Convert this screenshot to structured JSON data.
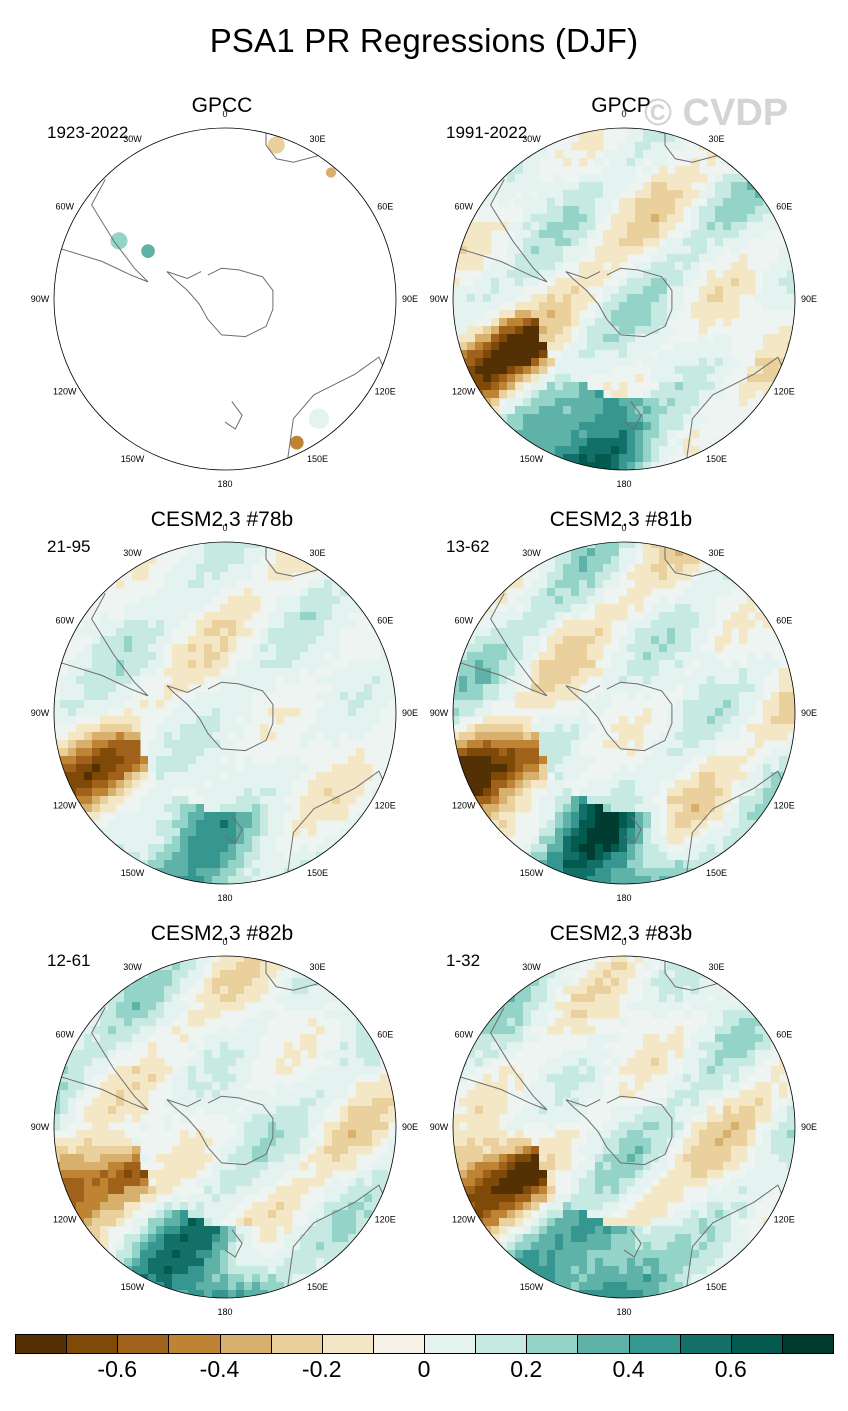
{
  "title": "PSA1 PR Regressions (DJF)",
  "watermark": "© CVDP",
  "lon_labels": [
    "0",
    "30E",
    "60E",
    "90E",
    "120E",
    "150E",
    "180",
    "150W",
    "120W",
    "90W",
    "60W",
    "30W"
  ],
  "panels": [
    {
      "title": "GPCC",
      "period": "1923-2022",
      "coverage": "land-only",
      "amplitude": 0.25
    },
    {
      "title": "GPCP",
      "period": "1991-2022",
      "coverage": "full",
      "amplitude": 0.75
    },
    {
      "title": "CESM2.3 #78b",
      "period": "21-95",
      "coverage": "full",
      "amplitude": 0.55
    },
    {
      "title": "CESM2.3 #81b",
      "period": "13-62",
      "coverage": "full",
      "amplitude": 0.75
    },
    {
      "title": "CESM2.3 #82b",
      "period": "12-61",
      "coverage": "full",
      "amplitude": 0.7
    },
    {
      "title": "CESM2.3 #83b",
      "period": "1-32",
      "coverage": "full",
      "amplitude": 0.75
    }
  ],
  "colorbar": {
    "colors": [
      "#543005",
      "#7f4908",
      "#a0621a",
      "#bf8433",
      "#d8b06d",
      "#e9d09c",
      "#f4e7c5",
      "#f5f1e6",
      "#e4f2f0",
      "#c6e9e2",
      "#93d3c8",
      "#5fb2a8",
      "#35978f",
      "#137068",
      "#035a4e",
      "#003c30"
    ],
    "boundaries": [
      -0.7,
      -0.6,
      -0.5,
      -0.4,
      -0.3,
      -0.2,
      -0.1,
      0,
      0.1,
      0.2,
      0.3,
      0.4,
      0.5,
      0.6,
      0.7
    ],
    "tick_labels": [
      "-0.6",
      "-0.4",
      "-0.2",
      "0",
      "0.2",
      "0.4",
      "0.6"
    ]
  }
}
